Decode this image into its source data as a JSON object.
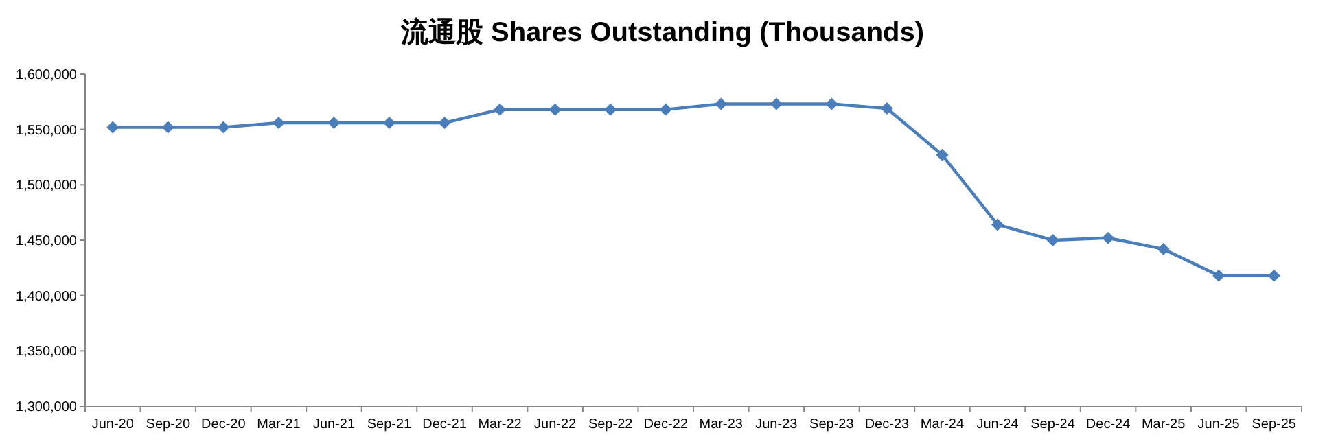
{
  "chart_data": {
    "type": "line",
    "title": "流通股 Shares Outstanding (Thousands)",
    "categories": [
      "Jun-20",
      "Sep-20",
      "Dec-20",
      "Mar-21",
      "Jun-21",
      "Sep-21",
      "Dec-21",
      "Mar-22",
      "Jun-22",
      "Sep-22",
      "Dec-22",
      "Mar-23",
      "Jun-23",
      "Sep-23",
      "Dec-23",
      "Mar-24",
      "Jun-24",
      "Sep-24",
      "Dec-24",
      "Mar-25",
      "Jun-25",
      "Sep-25"
    ],
    "series": [
      {
        "color": "#4a7ebb",
        "values": [
          1552000,
          1552000,
          1552000,
          1556000,
          1556000,
          1556000,
          1556000,
          1568000,
          1568000,
          1568000,
          1568000,
          1573000,
          1573000,
          1573000,
          1569000,
          1527000,
          1464000,
          1450000,
          1452000,
          1442000,
          1418000,
          1418000
        ]
      }
    ],
    "ylim": [
      1300000,
      1600000
    ],
    "yticks": [
      {
        "value": 1300000,
        "label": "1,300,000"
      },
      {
        "value": 1350000,
        "label": "1,350,000"
      },
      {
        "value": 1400000,
        "label": "1,400,000"
      },
      {
        "value": 1450000,
        "label": "1,450,000"
      },
      {
        "value": 1500000,
        "label": "1,500,000"
      },
      {
        "value": 1550000,
        "label": "1,550,000"
      },
      {
        "value": 1600000,
        "label": "1,600,000"
      }
    ],
    "grid": false,
    "marker": "diamond",
    "line_style": "solid"
  }
}
